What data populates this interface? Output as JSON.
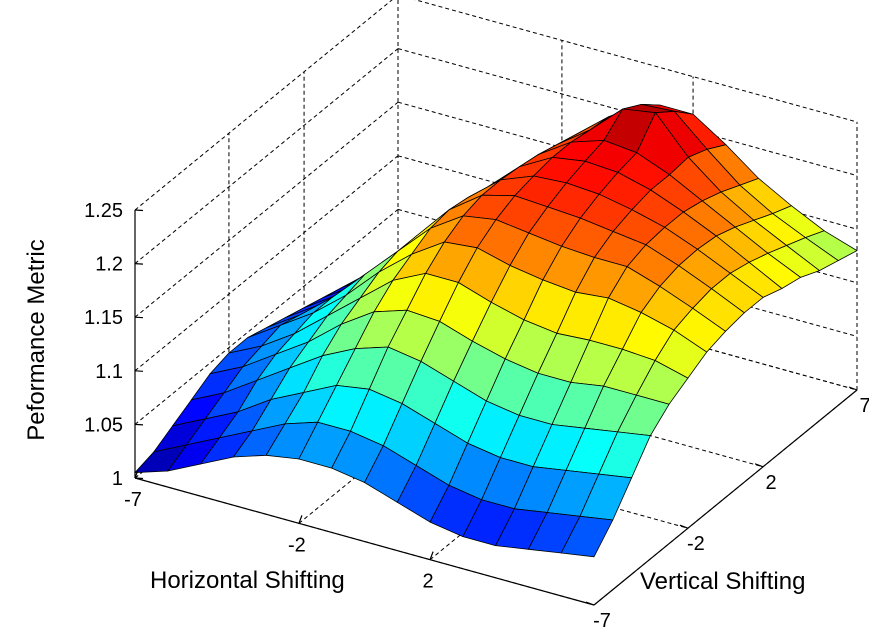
{
  "chart_data": {
    "type": "surface",
    "xlabel": "Horizontal Shifting",
    "ylabel": "Vertical  Shifting",
    "zlabel": "Peformance Metric",
    "x_range": [
      -7,
      7
    ],
    "y_range": [
      -7,
      7
    ],
    "z_range": [
      1,
      1.25
    ],
    "x_ticks": [
      "-7",
      "-2",
      "2"
    ],
    "y_ticks": [
      "-7",
      "-2",
      "2",
      "7"
    ],
    "z_ticks": [
      "1",
      "1.05",
      "1.1",
      "1.15",
      "1.2",
      "1.25"
    ],
    "grid": true,
    "colormap": "jet",
    "x": [
      -7,
      -6,
      -5,
      -4,
      -3,
      -2,
      -1,
      0,
      1,
      2,
      3,
      4,
      5,
      6,
      7
    ],
    "y": [
      -7,
      -6,
      -5,
      -4,
      -3,
      -2,
      -1,
      0,
      1,
      2,
      3,
      4,
      5,
      6,
      7
    ],
    "z": [
      [
        1.005,
        1.015,
        1.03,
        1.045,
        1.055,
        1.06,
        1.06,
        1.055,
        1.045,
        1.035,
        1.03,
        1.03,
        1.035,
        1.04,
        1.045
      ],
      [
        1.01,
        1.025,
        1.04,
        1.055,
        1.07,
        1.08,
        1.08,
        1.075,
        1.065,
        1.055,
        1.05,
        1.05,
        1.055,
        1.06,
        1.065
      ],
      [
        1.02,
        1.035,
        1.05,
        1.07,
        1.085,
        1.1,
        1.105,
        1.1,
        1.09,
        1.08,
        1.075,
        1.075,
        1.08,
        1.085,
        1.09
      ],
      [
        1.03,
        1.045,
        1.065,
        1.085,
        1.105,
        1.12,
        1.13,
        1.125,
        1.115,
        1.105,
        1.1,
        1.1,
        1.105,
        1.11,
        1.115
      ],
      [
        1.04,
        1.055,
        1.075,
        1.095,
        1.12,
        1.14,
        1.15,
        1.148,
        1.138,
        1.13,
        1.125,
        1.125,
        1.13,
        1.13,
        1.13
      ],
      [
        1.045,
        1.06,
        1.08,
        1.105,
        1.13,
        1.155,
        1.17,
        1.17,
        1.16,
        1.152,
        1.148,
        1.15,
        1.15,
        1.148,
        1.14
      ],
      [
        1.045,
        1.065,
        1.085,
        1.11,
        1.14,
        1.165,
        1.185,
        1.188,
        1.18,
        1.175,
        1.172,
        1.175,
        1.17,
        1.162,
        1.15
      ],
      [
        1.04,
        1.06,
        1.085,
        1.115,
        1.145,
        1.175,
        1.195,
        1.2,
        1.196,
        1.192,
        1.19,
        1.19,
        1.18,
        1.168,
        1.155
      ],
      [
        1.035,
        1.055,
        1.08,
        1.11,
        1.145,
        1.178,
        1.2,
        1.208,
        1.206,
        1.204,
        1.2,
        1.196,
        1.185,
        1.172,
        1.158
      ],
      [
        1.03,
        1.05,
        1.075,
        1.105,
        1.14,
        1.175,
        1.2,
        1.212,
        1.214,
        1.212,
        1.206,
        1.198,
        1.186,
        1.172,
        1.158
      ],
      [
        1.025,
        1.045,
        1.07,
        1.1,
        1.135,
        1.17,
        1.198,
        1.215,
        1.22,
        1.218,
        1.21,
        1.198,
        1.184,
        1.168,
        1.152
      ],
      [
        1.02,
        1.04,
        1.065,
        1.095,
        1.13,
        1.165,
        1.195,
        1.215,
        1.225,
        1.222,
        1.21,
        1.194,
        1.178,
        1.162,
        1.148
      ],
      [
        1.015,
        1.035,
        1.06,
        1.09,
        1.125,
        1.16,
        1.19,
        1.212,
        1.24,
        1.245,
        1.212,
        1.188,
        1.17,
        1.155,
        1.14
      ],
      [
        1.01,
        1.03,
        1.055,
        1.085,
        1.12,
        1.155,
        1.185,
        1.21,
        1.23,
        1.232,
        1.205,
        1.18,
        1.162,
        1.148,
        1.135
      ],
      [
        1.005,
        1.025,
        1.05,
        1.08,
        1.115,
        1.15,
        1.18,
        1.2,
        1.215,
        1.215,
        1.195,
        1.172,
        1.155,
        1.14,
        1.13
      ]
    ]
  }
}
